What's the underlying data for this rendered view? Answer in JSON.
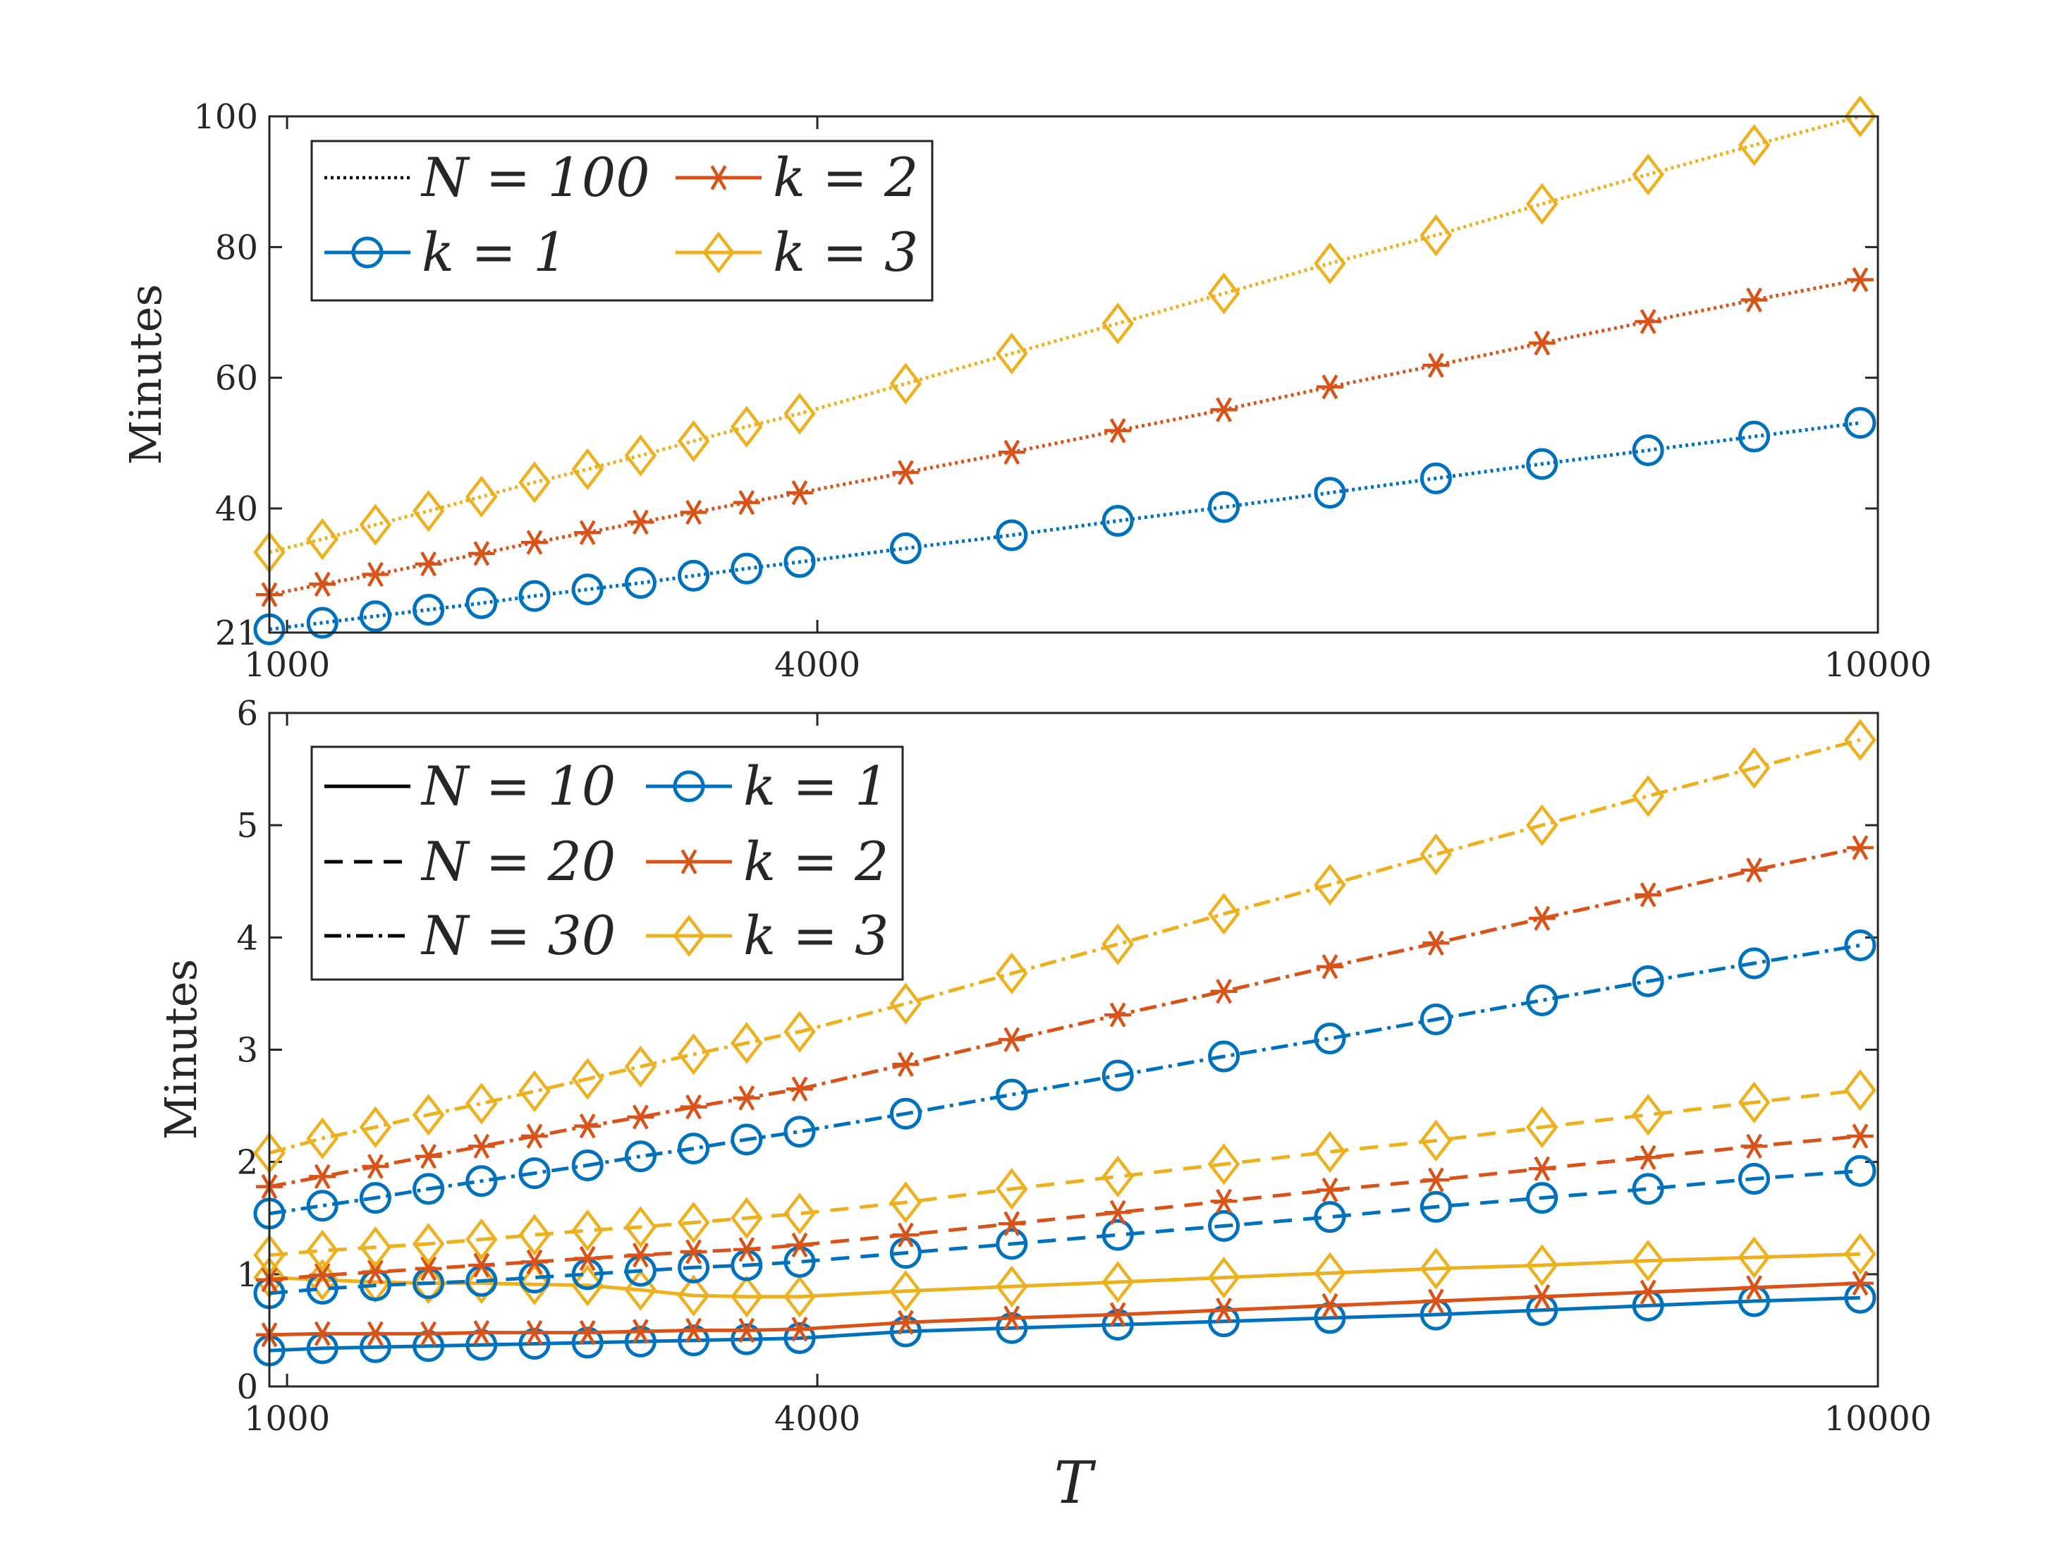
{
  "figure": {
    "xlabel": "T"
  },
  "colors": {
    "k1": "#0072BD",
    "k2": "#D95319",
    "k3": "#EDB120",
    "axes": "#262626"
  },
  "chart_data": [
    {
      "type": "line",
      "panel": "top",
      "ylabel": "Minutes",
      "xlim": [
        900,
        10000
      ],
      "ylim": [
        21,
        100
      ],
      "xticks": [
        1000,
        4000,
        10000
      ],
      "xtick_labels": [
        "1000",
        "4000",
        "10000"
      ],
      "yticks": [
        21,
        40,
        60,
        80,
        100
      ],
      "ytick_labels": [
        "21",
        "40",
        "60",
        "80",
        "100"
      ],
      "legend": {
        "placement": "top-left",
        "entries": [
          "N = 100",
          "k = 2",
          "k = 1",
          "k = 3"
        ]
      },
      "x": [
        900,
        1200,
        1500,
        1800,
        2100,
        2400,
        2700,
        3000,
        3300,
        3600,
        3900,
        4500,
        5100,
        5700,
        6300,
        6900,
        7500,
        8100,
        8700,
        9300,
        9900
      ],
      "series": [
        {
          "name": "N = 100, k = 1",
          "k": 1,
          "N": 100,
          "values": [
            21.5,
            22.5,
            23.5,
            24.5,
            25.5,
            26.6,
            27.6,
            28.6,
            29.7,
            30.8,
            31.8,
            33.9,
            35.9,
            38.1,
            40.2,
            42.4,
            44.6,
            46.8,
            48.9,
            51.0,
            53.1
          ]
        },
        {
          "name": "N = 100, k = 2",
          "k": 2,
          "N": 100,
          "values": [
            26.8,
            28.4,
            29.9,
            31.5,
            33.1,
            34.8,
            36.3,
            37.9,
            39.4,
            40.9,
            42.4,
            45.5,
            48.6,
            51.9,
            55.1,
            58.6,
            61.9,
            65.3,
            68.6,
            71.9,
            75.0
          ]
        },
        {
          "name": "N = 100, k = 3",
          "k": 3,
          "N": 100,
          "values": [
            33.3,
            35.3,
            37.5,
            39.6,
            41.8,
            44.0,
            46.0,
            48.1,
            50.3,
            52.5,
            54.5,
            59.1,
            63.7,
            68.3,
            72.9,
            77.5,
            81.8,
            86.6,
            91.1,
            95.6,
            100.0
          ]
        }
      ]
    },
    {
      "type": "line",
      "panel": "bottom",
      "ylabel": "Minutes",
      "xlabel": "T",
      "xlim": [
        900,
        10000
      ],
      "ylim": [
        0,
        6
      ],
      "xticks": [
        1000,
        4000,
        10000
      ],
      "xtick_labels": [
        "1000",
        "4000",
        "10000"
      ],
      "yticks": [
        0,
        1,
        2,
        3,
        4,
        5,
        6
      ],
      "ytick_labels": [
        "0",
        "1",
        "2",
        "3",
        "4",
        "5",
        "6"
      ],
      "legend": {
        "placement": "top-left",
        "entries": [
          "N = 10",
          "k = 1",
          "N = 20",
          "k = 2",
          "N = 30",
          "k = 3"
        ]
      },
      "x": [
        900,
        1200,
        1500,
        1800,
        2100,
        2400,
        2700,
        3000,
        3300,
        3600,
        3900,
        4500,
        5100,
        5700,
        6300,
        6900,
        7500,
        8100,
        8700,
        9300,
        9900
      ],
      "series": [
        {
          "name": "N = 10, k = 1",
          "k": 1,
          "N": 10,
          "values": [
            0.32,
            0.34,
            0.35,
            0.36,
            0.37,
            0.38,
            0.39,
            0.4,
            0.41,
            0.42,
            0.43,
            0.49,
            0.52,
            0.55,
            0.58,
            0.61,
            0.64,
            0.68,
            0.72,
            0.76,
            0.79
          ]
        },
        {
          "name": "N = 10, k = 2",
          "k": 2,
          "N": 10,
          "values": [
            0.46,
            0.47,
            0.47,
            0.47,
            0.48,
            0.48,
            0.48,
            0.49,
            0.5,
            0.5,
            0.51,
            0.57,
            0.61,
            0.64,
            0.68,
            0.72,
            0.76,
            0.8,
            0.84,
            0.88,
            0.92
          ]
        },
        {
          "name": "N = 10, k = 3",
          "k": 3,
          "N": 10,
          "values": [
            0.97,
            0.95,
            0.93,
            0.92,
            0.92,
            0.91,
            0.9,
            0.86,
            0.81,
            0.8,
            0.8,
            0.85,
            0.89,
            0.93,
            0.97,
            1.01,
            1.05,
            1.08,
            1.12,
            1.15,
            1.18
          ]
        },
        {
          "name": "N = 20, k = 1",
          "k": 1,
          "N": 20,
          "values": [
            0.83,
            0.87,
            0.9,
            0.92,
            0.94,
            0.97,
            1.0,
            1.03,
            1.06,
            1.08,
            1.11,
            1.19,
            1.27,
            1.35,
            1.43,
            1.51,
            1.6,
            1.68,
            1.76,
            1.85,
            1.92
          ]
        },
        {
          "name": "N = 20, k = 2",
          "k": 2,
          "N": 20,
          "values": [
            0.95,
            0.99,
            1.02,
            1.05,
            1.08,
            1.11,
            1.14,
            1.17,
            1.2,
            1.22,
            1.26,
            1.35,
            1.45,
            1.55,
            1.65,
            1.75,
            1.84,
            1.94,
            2.04,
            2.14,
            2.23
          ]
        },
        {
          "name": "N = 20, k = 3",
          "k": 3,
          "N": 20,
          "values": [
            1.17,
            1.21,
            1.24,
            1.27,
            1.31,
            1.35,
            1.39,
            1.42,
            1.46,
            1.5,
            1.54,
            1.64,
            1.76,
            1.87,
            1.98,
            2.09,
            2.19,
            2.31,
            2.42,
            2.53,
            2.64
          ]
        },
        {
          "name": "N = 30, k = 1",
          "k": 1,
          "N": 30,
          "values": [
            1.54,
            1.61,
            1.68,
            1.76,
            1.83,
            1.9,
            1.97,
            2.05,
            2.12,
            2.2,
            2.27,
            2.43,
            2.6,
            2.77,
            2.94,
            3.1,
            3.27,
            3.44,
            3.61,
            3.77,
            3.93
          ]
        },
        {
          "name": "N = 30, k = 2",
          "k": 2,
          "N": 30,
          "values": [
            1.78,
            1.87,
            1.96,
            2.05,
            2.14,
            2.23,
            2.32,
            2.4,
            2.49,
            2.57,
            2.65,
            2.87,
            3.09,
            3.31,
            3.52,
            3.74,
            3.95,
            4.17,
            4.38,
            4.6,
            4.8
          ]
        },
        {
          "name": "N = 30, k = 3",
          "k": 3,
          "N": 30,
          "values": [
            2.08,
            2.21,
            2.31,
            2.42,
            2.52,
            2.63,
            2.74,
            2.85,
            2.96,
            3.06,
            3.16,
            3.41,
            3.68,
            3.94,
            4.21,
            4.47,
            4.74,
            5.0,
            5.26,
            5.51,
            5.76
          ]
        }
      ]
    }
  ]
}
